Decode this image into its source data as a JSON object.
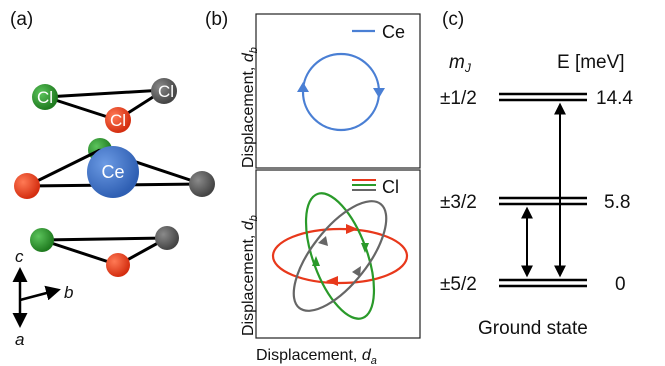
{
  "panel_a": {
    "label": "(a)",
    "atoms": {
      "cl_green": "Cl",
      "cl_gray": "Cl",
      "cl_red": "Cl",
      "ce": "Ce"
    },
    "axes": {
      "c": "c",
      "b": "b",
      "a": "a"
    },
    "colors": {
      "green": "#2a8a2a",
      "red": "#e8381b",
      "gray": "#555555",
      "ce": "#3a6fc4"
    }
  },
  "panel_b": {
    "label": "(b)",
    "top": {
      "ylabel_main": "Displacement, ",
      "ylabel_var": "d",
      "ylabel_sub": "b",
      "legend": "Ce",
      "legend_color": "#4a7fd4"
    },
    "bottom": {
      "ylabel_main": "Displacement, ",
      "ylabel_var": "d",
      "ylabel_sub": "b",
      "xlabel_main": "Displacement, ",
      "xlabel_var": "d",
      "xlabel_sub": "a",
      "legend": "Cl",
      "orbit_colors": {
        "red": "#e8381b",
        "green": "#2a9a2a",
        "gray": "#666666"
      }
    }
  },
  "panel_c": {
    "label": "(c)",
    "mj_var": "m",
    "mj_sub": "J",
    "energy_header": "E [meV]",
    "levels": [
      {
        "mj": "±1/2",
        "energy": "14.4"
      },
      {
        "mj": "±3/2",
        "energy": "5.8"
      },
      {
        "mj": "±5/2",
        "energy": "0"
      }
    ],
    "footer": "Ground state"
  }
}
